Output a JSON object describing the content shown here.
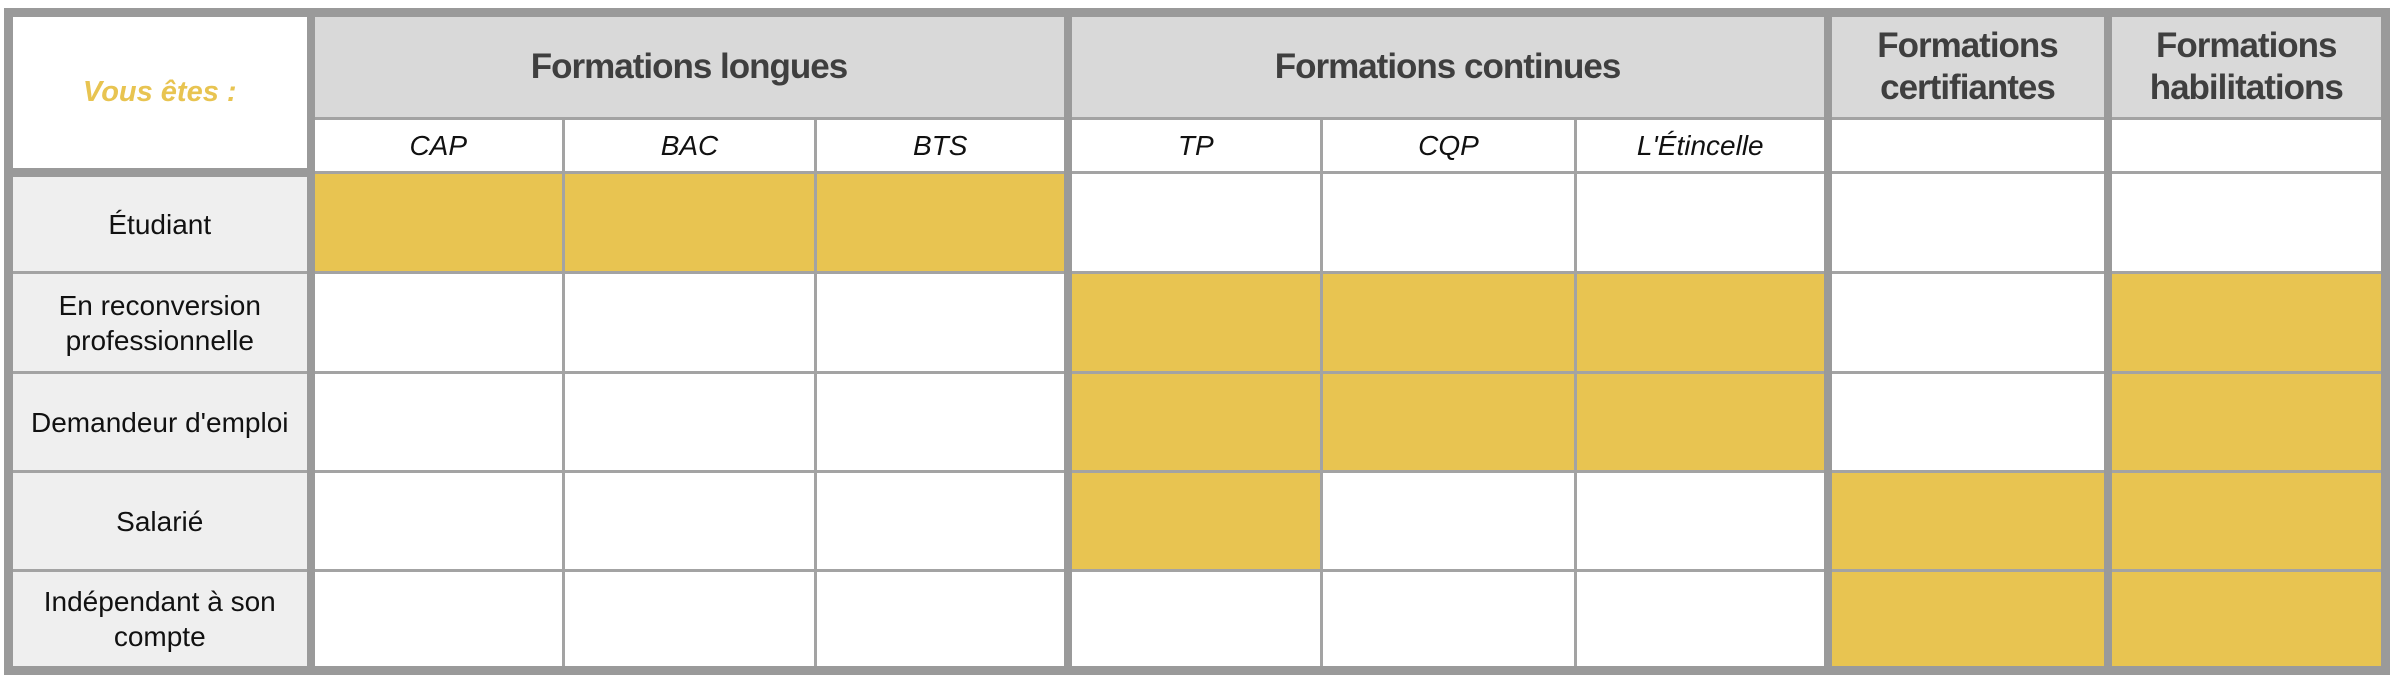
{
  "corner_label": "Vous êtes :",
  "groups": [
    {
      "title": "Formations longues",
      "subcolumns": [
        "CAP",
        "BAC",
        "BTS"
      ]
    },
    {
      "title": "Formations continues",
      "subcolumns": [
        "TP",
        "CQP",
        "L'Étincelle"
      ]
    },
    {
      "title": "Formations certifiantes",
      "subcolumns": [
        ""
      ]
    },
    {
      "title": "Formations habilitations",
      "subcolumns": [
        ""
      ]
    }
  ],
  "rows": [
    {
      "label": "Étudiant",
      "cells": [
        true,
        true,
        true,
        false,
        false,
        false,
        false,
        false
      ]
    },
    {
      "label": "En reconversion professionnelle",
      "cells": [
        false,
        false,
        false,
        true,
        true,
        true,
        false,
        true
      ]
    },
    {
      "label": "Demandeur d'emploi",
      "cells": [
        false,
        false,
        false,
        true,
        true,
        true,
        false,
        true
      ]
    },
    {
      "label": "Salarié",
      "cells": [
        false,
        false,
        false,
        true,
        false,
        false,
        true,
        true
      ]
    },
    {
      "label": "Indépendant à son compte",
      "cells": [
        false,
        false,
        false,
        false,
        false,
        false,
        true,
        true
      ]
    }
  ],
  "colors": {
    "highlight": "#E8C451",
    "header_bg": "#D9D9D9",
    "row_label_bg": "#EFEFEF",
    "border": "#9A9A9A",
    "corner_text": "#E8C451"
  }
}
